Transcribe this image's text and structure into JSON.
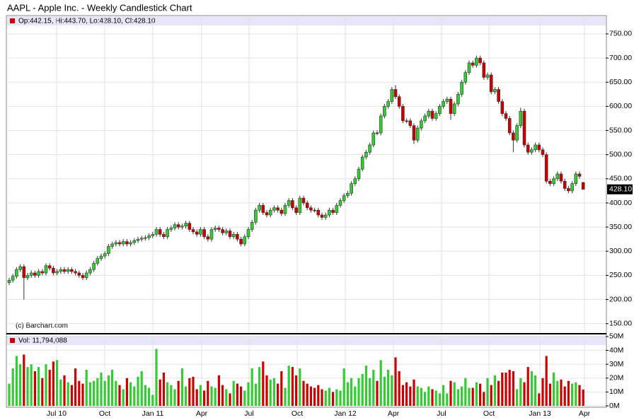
{
  "chart_data": {
    "type": "candlestick",
    "title": "AAPL - Apple Inc. - Weekly Candlestick Chart",
    "ohlc_legend": "Op:442.15, Hi:443.70, Lo:428.10, Cl:428.10",
    "volume_legend": "Vol: 11,794,088",
    "credit": "(c) Barchart.com",
    "last_price_label": "428.10",
    "up_color": "#33cc33",
    "down_color": "#cc0000",
    "x_labels": [
      "Jul 10",
      "Oct",
      "Jan 11",
      "Apr",
      "Jul",
      "Oct",
      "Jan 12",
      "Apr",
      "Jul",
      "Oct",
      "Jan 13",
      "Apr"
    ],
    "grid": true,
    "ylim": [
      132,
      788
    ],
    "yticks": [
      {
        "value": 150,
        "label": "150.00"
      },
      {
        "value": 200,
        "label": "200.00"
      },
      {
        "value": 250,
        "label": "250.00"
      },
      {
        "value": 300,
        "label": "300.00"
      },
      {
        "value": 350,
        "label": "350.00"
      },
      {
        "value": 400,
        "label": "400.00"
      },
      {
        "value": 450,
        "label": "450.00"
      },
      {
        "value": 500,
        "label": "500.00"
      },
      {
        "value": 550,
        "label": "550.00"
      },
      {
        "value": 600,
        "label": "600.00"
      },
      {
        "value": 650,
        "label": "650.00"
      },
      {
        "value": 700,
        "label": "700.00"
      },
      {
        "value": 750,
        "label": "750.00"
      }
    ],
    "y2lim": [
      0,
      51
    ],
    "y2ticks": [
      {
        "value": 0,
        "label": "0M"
      },
      {
        "value": 10,
        "label": "10M"
      },
      {
        "value": 20,
        "label": "20M"
      },
      {
        "value": 30,
        "label": "30M"
      },
      {
        "value": 40,
        "label": "40M"
      },
      {
        "value": 50,
        "label": "50M"
      }
    ],
    "open": [
      235,
      240,
      248,
      262,
      268,
      245,
      250,
      255,
      250,
      258,
      255,
      270,
      265,
      255,
      258,
      262,
      258,
      262,
      258,
      255,
      250,
      245,
      255,
      262,
      275,
      285,
      290,
      295,
      310,
      315,
      318,
      315,
      320,
      315,
      318,
      322,
      325,
      327,
      328,
      332,
      335,
      345,
      335,
      330,
      345,
      348,
      355,
      350,
      352,
      358,
      345,
      340,
      335,
      345,
      330,
      325,
      345,
      348,
      345,
      338,
      342,
      330,
      335,
      325,
      315,
      330,
      345,
      360,
      385,
      395,
      380,
      375,
      385,
      390,
      385,
      378,
      395,
      405,
      390,
      380,
      410,
      400,
      390,
      385,
      385,
      375,
      370,
      375,
      385,
      380,
      395,
      405,
      415,
      420,
      440,
      450,
      470,
      495,
      505,
      520,
      545,
      545,
      580,
      600,
      610,
      635,
      620,
      600,
      570,
      570,
      560,
      530,
      555,
      570,
      580,
      590,
      575,
      585,
      600,
      610,
      615,
      585,
      605,
      625,
      650,
      670,
      690,
      685,
      700,
      690,
      660,
      665,
      630,
      635,
      610,
      585,
      575,
      545,
      530,
      560,
      590,
      520,
      505,
      510,
      520,
      510,
      500,
      445,
      440,
      450,
      460,
      445,
      430,
      425,
      440,
      460,
      442.15
    ],
    "high": [
      245,
      253,
      267,
      273,
      273,
      255,
      260,
      260,
      263,
      263,
      275,
      275,
      270,
      263,
      267,
      267,
      267,
      267,
      263,
      260,
      255,
      260,
      267,
      280,
      290,
      295,
      300,
      315,
      320,
      323,
      323,
      325,
      325,
      323,
      327,
      330,
      332,
      333,
      337,
      340,
      350,
      350,
      340,
      350,
      353,
      360,
      360,
      357,
      363,
      363,
      350,
      345,
      350,
      350,
      335,
      350,
      353,
      353,
      350,
      347,
      347,
      340,
      340,
      330,
      335,
      350,
      365,
      390,
      400,
      400,
      385,
      390,
      395,
      395,
      390,
      400,
      410,
      410,
      395,
      415,
      415,
      405,
      395,
      390,
      390,
      380,
      380,
      390,
      390,
      400,
      410,
      420,
      425,
      445,
      455,
      475,
      500,
      510,
      525,
      550,
      550,
      585,
      605,
      615,
      640,
      644,
      625,
      605,
      575,
      575,
      565,
      560,
      575,
      585,
      595,
      595,
      590,
      605,
      615,
      620,
      620,
      610,
      630,
      655,
      675,
      695,
      695,
      705,
      705,
      695,
      670,
      670,
      640,
      640,
      615,
      590,
      580,
      550,
      565,
      597,
      595,
      525,
      515,
      525,
      525,
      515,
      505,
      450,
      455,
      465,
      465,
      450,
      435,
      445,
      465,
      465,
      443.7
    ],
    "low": [
      230,
      235,
      243,
      257,
      200,
      240,
      245,
      245,
      245,
      250,
      250,
      260,
      250,
      250,
      253,
      253,
      253,
      253,
      250,
      245,
      240,
      240,
      250,
      257,
      270,
      280,
      285,
      290,
      305,
      310,
      310,
      310,
      310,
      310,
      313,
      317,
      320,
      322,
      323,
      327,
      330,
      330,
      325,
      325,
      340,
      343,
      345,
      345,
      347,
      340,
      335,
      330,
      330,
      325,
      320,
      320,
      340,
      340,
      333,
      333,
      325,
      325,
      320,
      310,
      310,
      325,
      340,
      355,
      380,
      375,
      370,
      370,
      380,
      380,
      373,
      373,
      390,
      385,
      375,
      375,
      395,
      385,
      380,
      380,
      370,
      365,
      365,
      370,
      375,
      375,
      390,
      400,
      410,
      415,
      435,
      445,
      465,
      490,
      500,
      515,
      540,
      540,
      575,
      595,
      605,
      615,
      595,
      565,
      565,
      555,
      522,
      525,
      550,
      565,
      575,
      570,
      570,
      580,
      595,
      605,
      572,
      580,
      600,
      620,
      645,
      665,
      680,
      680,
      685,
      655,
      655,
      625,
      625,
      605,
      580,
      570,
      540,
      505,
      525,
      555,
      515,
      500,
      500,
      505,
      505,
      495,
      440,
      435,
      435,
      445,
      440,
      425,
      420,
      420,
      435,
      450,
      428.1
    ],
    "close": [
      240,
      248,
      262,
      268,
      245,
      250,
      255,
      250,
      258,
      255,
      270,
      265,
      255,
      258,
      262,
      258,
      262,
      258,
      255,
      250,
      245,
      255,
      262,
      275,
      285,
      290,
      295,
      310,
      315,
      318,
      315,
      320,
      315,
      318,
      322,
      325,
      327,
      328,
      332,
      335,
      345,
      335,
      330,
      345,
      348,
      355,
      350,
      352,
      358,
      345,
      340,
      335,
      345,
      330,
      325,
      345,
      348,
      345,
      338,
      342,
      330,
      335,
      325,
      315,
      330,
      345,
      360,
      385,
      395,
      380,
      375,
      385,
      390,
      385,
      378,
      395,
      405,
      390,
      380,
      410,
      400,
      390,
      385,
      385,
      375,
      370,
      375,
      385,
      380,
      395,
      405,
      415,
      420,
      440,
      450,
      470,
      495,
      505,
      520,
      545,
      545,
      580,
      600,
      610,
      635,
      620,
      600,
      570,
      570,
      560,
      530,
      555,
      570,
      580,
      590,
      575,
      585,
      600,
      610,
      615,
      585,
      605,
      625,
      650,
      670,
      690,
      685,
      700,
      690,
      660,
      665,
      630,
      635,
      610,
      585,
      575,
      545,
      530,
      560,
      590,
      520,
      505,
      510,
      520,
      510,
      500,
      445,
      440,
      450,
      460,
      445,
      430,
      425,
      440,
      460,
      455,
      428.1
    ],
    "volume": [
      16,
      27,
      36,
      30,
      37,
      28,
      30,
      25,
      28,
      20,
      30,
      26,
      32,
      33,
      19,
      22,
      17,
      15,
      27,
      18,
      16,
      26,
      17,
      18,
      20,
      24,
      18,
      22,
      26,
      18,
      15,
      12,
      20,
      17,
      14,
      21,
      25,
      15,
      13,
      8,
      41,
      19,
      24,
      17,
      15,
      12,
      18,
      27,
      14,
      20,
      21,
      12,
      15,
      11,
      18,
      14,
      13,
      22,
      15,
      12,
      9,
      18,
      16,
      14,
      11,
      17,
      27,
      16,
      28,
      32,
      22,
      19,
      20,
      16,
      25,
      13,
      29,
      28,
      22,
      27,
      18,
      16,
      14,
      13,
      15,
      12,
      11,
      13,
      10,
      12,
      11,
      27,
      17,
      20,
      14,
      20,
      23,
      29,
      20,
      26,
      18,
      33,
      21,
      26,
      22,
      35,
      25,
      15,
      17,
      14,
      19,
      14,
      13,
      10,
      14,
      12,
      11,
      9,
      15,
      9,
      18,
      17,
      12,
      14,
      20,
      13,
      13,
      17,
      16,
      10,
      20,
      15,
      22,
      18,
      24,
      24,
      26,
      25,
      12,
      20,
      17,
      28,
      25,
      22,
      9,
      20,
      36,
      16,
      24,
      18,
      19,
      14,
      18,
      16,
      17,
      15,
      11.79
    ]
  }
}
